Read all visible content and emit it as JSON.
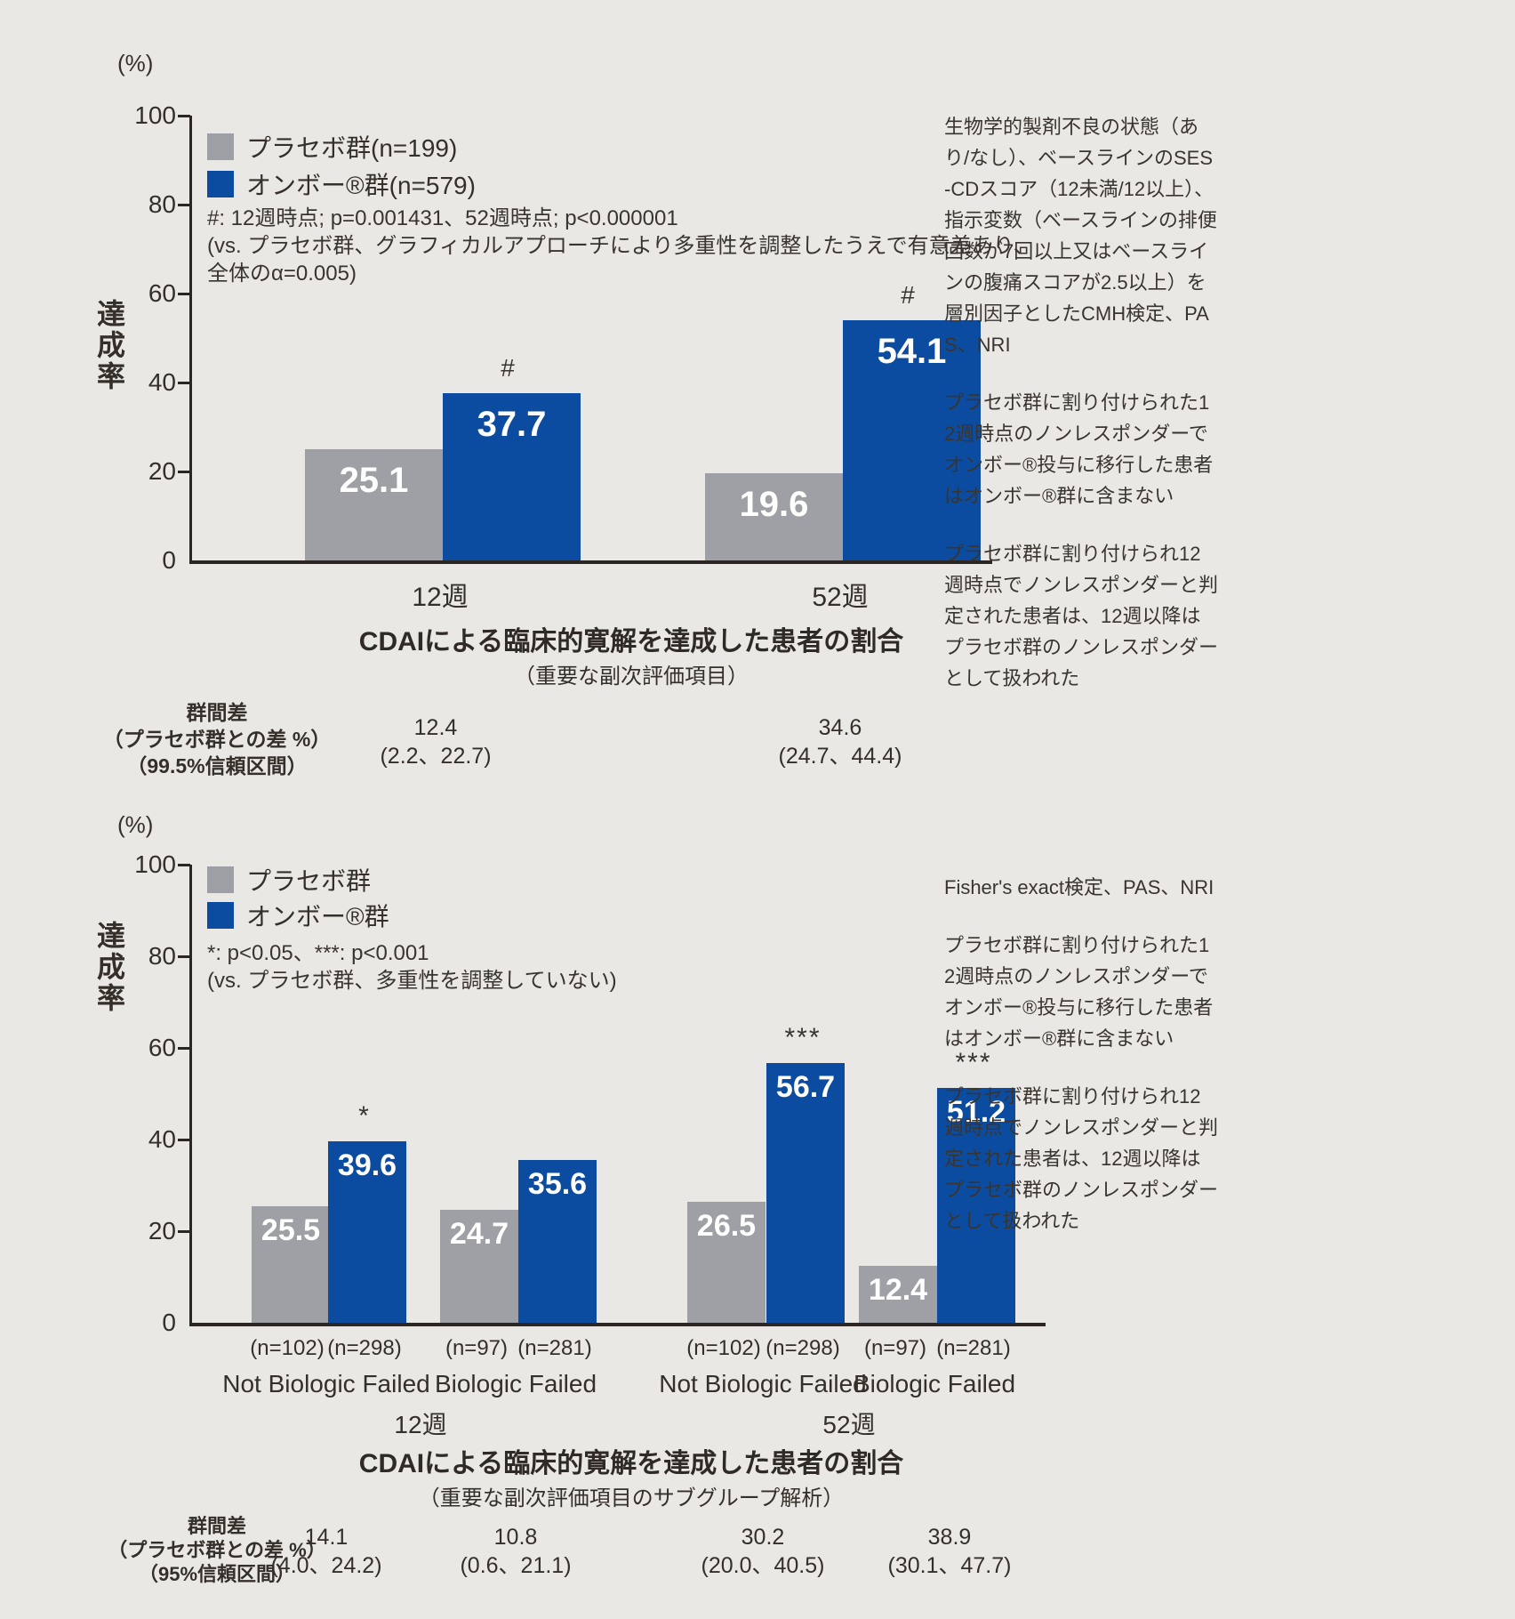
{
  "colors": {
    "background": "#e9e8e5",
    "placebo_bar": "#9ea0a5",
    "ombo_bar": "#0c4ca0",
    "axis": "#2b2623",
    "text": "#352f2a",
    "bar_value_text": "#ffffff"
  },
  "chart_data": [
    {
      "type": "bar",
      "title": "CDAIによる臨床的寛解を達成した患者の割合",
      "subtitle": "（重要な副次評価項目）",
      "y_unit": "(%)",
      "ylabel": "達成率",
      "ylim": [
        0,
        100
      ],
      "y_ticks": [
        0,
        20,
        40,
        60,
        80,
        100
      ],
      "categories": [
        "12週",
        "52週"
      ],
      "series": [
        {
          "name": "プラセボ群(n=199)",
          "color": "#9ea0a5",
          "values": [
            25.1,
            19.6
          ]
        },
        {
          "name": "オンボー®群(n=579)",
          "color": "#0c4ca0",
          "values": [
            37.7,
            54.1
          ],
          "markers": [
            "#",
            "#"
          ]
        }
      ],
      "significance_note": [
        "#: 12週時点; p=0.001431、52週時点; p<0.000001",
        "(vs. プラセボ群、グラフィカルアプローチにより多重性を調整したうえで有意差あり、",
        "全体のα=0.005)"
      ],
      "diff_row": {
        "header": [
          "群間差",
          "（プラセボ群との差 %）",
          "（99.5%信頼区間）"
        ],
        "cells": [
          {
            "value": "12.4",
            "ci": "(2.2、22.7)"
          },
          {
            "value": "34.6",
            "ci": "(24.7、44.4)"
          }
        ]
      },
      "side_notes": [
        "生物学的製剤不良の状態（あり/なし）、ベースラインのSES-CDスコア（12未満/12以上）、指示変数（ベースラインの排便回数が7回以上又はベースラインの腹痛スコアが2.5以上）を層別因子としたCMH検定、PAS、NRI",
        "プラセボ群に割り付けられた12週時点のノンレスポンダーでオンボー®投与に移行した患者はオンボー®群に含まない",
        "プラセボ群に割り付けられ12週時点でノンレスポンダーと判定された患者は、12週以降はプラセボ群のノンレスポンダーとして扱われた"
      ]
    },
    {
      "type": "bar",
      "title": "CDAIによる臨床的寛解を達成した患者の割合",
      "subtitle": "（重要な副次評価項目のサブグループ解析）",
      "y_unit": "(%)",
      "ylabel": "達成率",
      "ylim": [
        0,
        100
      ],
      "y_ticks": [
        0,
        20,
        40,
        60,
        80,
        100
      ],
      "legend": [
        {
          "name": "プラセボ群",
          "color": "#9ea0a5"
        },
        {
          "name": "オンボー®群",
          "color": "#0c4ca0"
        }
      ],
      "periods": [
        "12週",
        "52週"
      ],
      "bars": [
        {
          "period": "12週",
          "subgroup": "Not Biologic Failed",
          "placebo": {
            "n": "(n=102)",
            "value": 25.5
          },
          "ombo": {
            "n": "(n=298)",
            "value": 39.6,
            "marker": "*"
          }
        },
        {
          "period": "12週",
          "subgroup": "Biologic Failed",
          "placebo": {
            "n": "(n=97)",
            "value": 24.7
          },
          "ombo": {
            "n": "(n=281)",
            "value": 35.6,
            "marker": ""
          }
        },
        {
          "period": "52週",
          "subgroup": "Not Biologic Failed",
          "placebo": {
            "n": "(n=102)",
            "value": 26.5
          },
          "ombo": {
            "n": "(n=298)",
            "value": 56.7,
            "marker": "***"
          }
        },
        {
          "period": "52週",
          "subgroup": "Biologic Failed",
          "placebo": {
            "n": "(n=97)",
            "value": 12.4
          },
          "ombo": {
            "n": "(n=281)",
            "value": 51.2,
            "marker": "***"
          }
        }
      ],
      "significance_note": [
        "*: p<0.05、***: p<0.001",
        "(vs. プラセボ群、多重性を調整していない)"
      ],
      "diff_row": {
        "header": [
          "群間差",
          "（プラセボ群との差 %）",
          "（95%信頼区間）"
        ],
        "cells": [
          {
            "value": "14.1",
            "ci": "(4.0、24.2)"
          },
          {
            "value": "10.8",
            "ci": "(0.6、21.1)"
          },
          {
            "value": "30.2",
            "ci": "(20.0、40.5)"
          },
          {
            "value": "38.9",
            "ci": "(30.1、47.7)"
          }
        ]
      },
      "side_notes": [
        "Fisher's exact検定、PAS、NRI",
        "プラセボ群に割り付けられた12週時点のノンレスポンダーでオンボー®投与に移行した患者はオンボー®群に含まない",
        "プラセボ群に割り付けられ12週時点でノンレスポンダーと判定された患者は、12週以降はプラセボ群のノンレスポンダーとして扱われた"
      ]
    }
  ]
}
